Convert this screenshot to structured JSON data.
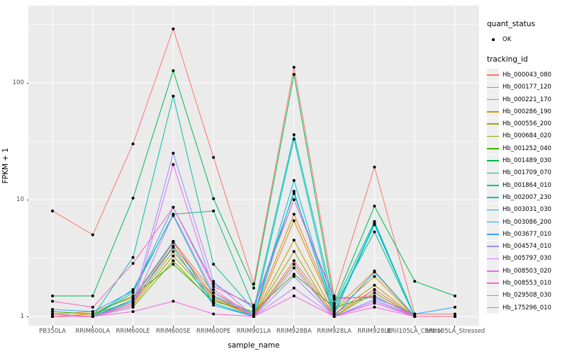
{
  "colors": {
    "panel_bg": "#EBEBEB",
    "gridline": "#FFFFFF",
    "tick_label": "#4D4D4D",
    "point": "#000000"
  },
  "chart_data": {
    "type": "line",
    "title": "",
    "xlabel": "sample_name",
    "ylabel": "FPKM + 1",
    "y_scale": "log10",
    "y_ticks": [
      1,
      10,
      100
    ],
    "y_minor_ticks": [
      3.1623,
      31.623,
      316.23
    ],
    "ylim": [
      0.95,
      320
    ],
    "grid": true,
    "legend_position": "right",
    "legend": {
      "quant_status": {
        "title": "quant_status",
        "items": [
          {
            "label": "OK",
            "marker": "black-point"
          }
        ]
      },
      "tracking_id": {
        "title": "tracking_id"
      }
    },
    "categories": [
      "PB350LA",
      "RRIM600LA",
      "RRIM600LE",
      "RRIM600SE",
      "RRIM600PE",
      "RRIM901LA",
      "RRIM928BA",
      "RRIM928LA",
      "RRIM928LE",
      "RRII105LA_Control",
      "RRII105LA_Stressed"
    ],
    "series": [
      {
        "name": "Hb_000043_080",
        "color": "#F8766D",
        "values": [
          8,
          5,
          30,
          290,
          23,
          1.9,
          136,
          1.5,
          19,
          1.05,
          1.05
        ]
      },
      {
        "name": "Hb_000177_120",
        "color": "#E88526",
        "values": [
          1.05,
          1.1,
          1.45,
          4.4,
          1.6,
          1.05,
          7.5,
          1.15,
          2.45,
          1,
          1
        ]
      },
      {
        "name": "Hb_000221_170",
        "color": "#D89000",
        "values": [
          1,
          1.05,
          1.35,
          4,
          1.5,
          1,
          6.6,
          1.1,
          2.2,
          1,
          1
        ]
      },
      {
        "name": "Hb_000286_190",
        "color": "#C09B00",
        "values": [
          1,
          1,
          1.3,
          3.6,
          1.45,
          1,
          4.5,
          1.05,
          1.85,
          1,
          1
        ]
      },
      {
        "name": "Hb_000556_200",
        "color": "#A3A500",
        "values": [
          1,
          1,
          1.25,
          3.3,
          1.4,
          1,
          3.6,
          1,
          1.7,
          1,
          1
        ]
      },
      {
        "name": "Hb_000684_020",
        "color": "#7CAE00",
        "values": [
          1,
          1,
          1.2,
          3,
          1.3,
          1,
          2.8,
          1,
          1.6,
          1,
          1
        ]
      },
      {
        "name": "Hb_001252_040",
        "color": "#39B600",
        "values": [
          1.1,
          1.05,
          1.5,
          2.8,
          1.35,
          1.1,
          2.3,
          1.2,
          1.5,
          1,
          1
        ]
      },
      {
        "name": "Hb_001489_030",
        "color": "#00BB4E",
        "values": [
          1.5,
          1.5,
          10.3,
          127,
          10.2,
          1.75,
          118,
          1.3,
          8.8,
          2,
          1.5
        ]
      },
      {
        "name": "Hb_001709_070",
        "color": "#00BF7D",
        "values": [
          1.05,
          1,
          1.6,
          7.5,
          8,
          1.2,
          11.3,
          1.2,
          5.3,
          1,
          1
        ]
      },
      {
        "name": "Hb_001864_010",
        "color": "#00C1A3",
        "values": [
          1,
          1,
          3.2,
          77,
          2.8,
          1.15,
          36,
          1.25,
          6.5,
          1,
          1
        ]
      },
      {
        "name": "Hb_002007_230",
        "color": "#00BFC4",
        "values": [
          1,
          1,
          1.7,
          7.3,
          1.5,
          1.05,
          33,
          1.1,
          6.3,
          1,
          1
        ]
      },
      {
        "name": "Hb_003031_030",
        "color": "#00BAE0",
        "values": [
          1,
          1,
          1.4,
          4.4,
          1.3,
          1,
          14.6,
          1.05,
          6.1,
          1,
          1
        ]
      },
      {
        "name": "Hb_003086_200",
        "color": "#00B0F6",
        "values": [
          1,
          1,
          1.35,
          3.9,
          1.25,
          1,
          11.8,
          1,
          2.4,
          1,
          1
        ]
      },
      {
        "name": "Hb_003677_010",
        "color": "#35A2FF",
        "values": [
          1.15,
          1.1,
          1.65,
          8.6,
          1.9,
          1.2,
          10,
          1.45,
          1.45,
          1.05,
          1.2
        ]
      },
      {
        "name": "Hb_004574_010",
        "color": "#9590FF",
        "values": [
          1,
          1,
          1.3,
          25,
          2,
          1,
          2.2,
          1,
          1.4,
          1,
          1
        ]
      },
      {
        "name": "Hb_005797_030",
        "color": "#C77CFF",
        "values": [
          1,
          1,
          1.25,
          7.5,
          1.6,
          1,
          1.75,
          1,
          1.35,
          1,
          1
        ]
      },
      {
        "name": "Hb_008503_020",
        "color": "#E76BF3",
        "values": [
          1,
          1,
          1.2,
          20,
          1.7,
          1,
          2.6,
          1,
          1.3,
          1,
          1
        ]
      },
      {
        "name": "Hb_008553_010",
        "color": "#FA62DB",
        "values": [
          1,
          1,
          1.1,
          1.35,
          1.05,
          1,
          1.5,
          1,
          1.2,
          1,
          1
        ]
      },
      {
        "name": "Hb_029508_030",
        "color": "#FF62BC",
        "values": [
          1.35,
          1.2,
          2.85,
          8.6,
          1.8,
          1.25,
          10,
          1.4,
          1.5,
          1,
          1
        ]
      },
      {
        "name": "Hb_175296_010",
        "color": "#FF6A98",
        "values": [
          1.05,
          1,
          1.3,
          4.3,
          1.45,
          1,
          3,
          1.05,
          1.7,
          1,
          1
        ]
      }
    ]
  }
}
